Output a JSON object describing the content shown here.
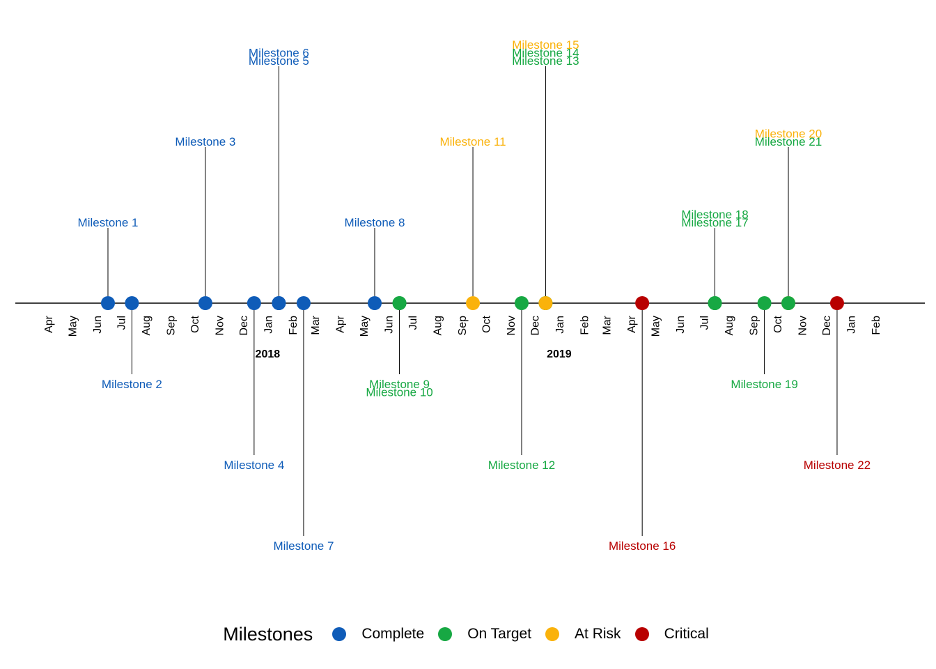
{
  "chart_data": {
    "type": "timeline",
    "title": "",
    "xlabel": "",
    "ylabel": "",
    "xlim": [
      "2017-03-01",
      "2020-03-01"
    ],
    "grid": false,
    "month_ticks": [
      "Apr",
      "May",
      "Jun",
      "Jul",
      "Aug",
      "Sep",
      "Oct",
      "Nov",
      "Dec",
      "Jan",
      "Feb",
      "Mar",
      "Apr",
      "May",
      "Jun",
      "Jul",
      "Aug",
      "Sep",
      "Oct",
      "Nov",
      "Dec",
      "Jan",
      "Feb",
      "Mar",
      "Apr",
      "May",
      "Jun",
      "Jul",
      "Aug",
      "Sep",
      "Oct",
      "Nov",
      "Dec",
      "Jan",
      "Feb"
    ],
    "month_tick_dates": [
      "2017-04-01",
      "2017-05-01",
      "2017-06-01",
      "2017-07-01",
      "2017-08-01",
      "2017-09-01",
      "2017-10-01",
      "2017-11-01",
      "2017-12-01",
      "2018-01-01",
      "2018-02-01",
      "2018-03-01",
      "2018-04-01",
      "2018-05-01",
      "2018-06-01",
      "2018-07-01",
      "2018-08-01",
      "2018-09-01",
      "2018-10-01",
      "2018-11-01",
      "2018-12-01",
      "2019-01-01",
      "2019-02-01",
      "2019-03-01",
      "2019-04-01",
      "2019-05-01",
      "2019-06-01",
      "2019-07-01",
      "2019-08-01",
      "2019-09-01",
      "2019-10-01",
      "2019-11-01",
      "2019-12-01",
      "2020-01-01",
      "2020-02-01"
    ],
    "year_labels": [
      {
        "label": "2018",
        "date": "2018-01-01"
      },
      {
        "label": "2019",
        "date": "2019-01-01"
      }
    ],
    "legend": {
      "title": "Milestones",
      "placement": "bottom",
      "entries": [
        {
          "status": "Complete",
          "color": "#0f5cb8"
        },
        {
          "status": "On Target",
          "color": "#17a843"
        },
        {
          "status": "At Risk",
          "color": "#fab20b"
        },
        {
          "status": "Critical",
          "color": "#b80000"
        }
      ]
    },
    "milestones": [
      {
        "label": "Milestone 1",
        "date": "2017-06-15",
        "status": "Complete",
        "position": 1.0
      },
      {
        "label": "Milestone 2",
        "date": "2017-07-15",
        "status": "Complete",
        "position": -1.0
      },
      {
        "label": "Milestone 3",
        "date": "2017-10-15",
        "status": "Complete",
        "position": 2.0
      },
      {
        "label": "Milestone 4",
        "date": "2017-12-15",
        "status": "Complete",
        "position": -2.0
      },
      {
        "label": "Milestone 5",
        "date": "2018-01-15",
        "status": "Complete",
        "position": 3.0
      },
      {
        "label": "Milestone 6",
        "date": "2018-01-15",
        "status": "Complete",
        "position": 3.1
      },
      {
        "label": "Milestone 7",
        "date": "2018-02-15",
        "status": "Complete",
        "position": -3.0
      },
      {
        "label": "Milestone 8",
        "date": "2018-05-15",
        "status": "Complete",
        "position": 1.0
      },
      {
        "label": "Milestone 9",
        "date": "2018-06-15",
        "status": "On Target",
        "position": -1.0
      },
      {
        "label": "Milestone 10",
        "date": "2018-06-15",
        "status": "On Target",
        "position": -1.1
      },
      {
        "label": "Milestone 11",
        "date": "2018-09-15",
        "status": "At Risk",
        "position": 2.0
      },
      {
        "label": "Milestone 12",
        "date": "2018-11-15",
        "status": "On Target",
        "position": -2.0
      },
      {
        "label": "Milestone 13",
        "date": "2018-12-15",
        "status": "On Target",
        "position": 3.0
      },
      {
        "label": "Milestone 14",
        "date": "2018-12-15",
        "status": "On Target",
        "position": 3.1
      },
      {
        "label": "Milestone 15",
        "date": "2018-12-15",
        "status": "At Risk",
        "position": 3.2
      },
      {
        "label": "Milestone 16",
        "date": "2019-04-15",
        "status": "Critical",
        "position": -3.0
      },
      {
        "label": "Milestone 17",
        "date": "2019-07-15",
        "status": "On Target",
        "position": 1.0
      },
      {
        "label": "Milestone 18",
        "date": "2019-07-15",
        "status": "On Target",
        "position": 1.1
      },
      {
        "label": "Milestone 19",
        "date": "2019-09-15",
        "status": "On Target",
        "position": -1.0
      },
      {
        "label": "Milestone 20",
        "date": "2019-10-15",
        "status": "At Risk",
        "position": 2.1
      },
      {
        "label": "Milestone 21",
        "date": "2019-10-15",
        "status": "On Target",
        "position": 2.0
      },
      {
        "label": "Milestone 22",
        "date": "2019-12-15",
        "status": "Critical",
        "position": -2.0
      }
    ]
  }
}
